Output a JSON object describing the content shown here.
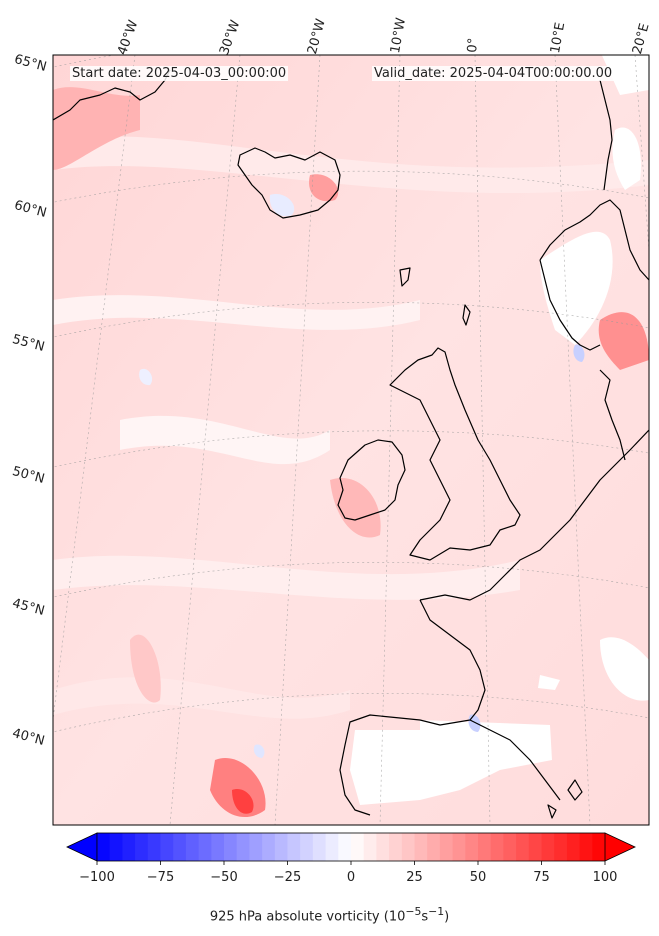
{
  "header": {
    "start_label": "Start date: 2025-04-03_00:00:00",
    "valid_label": "Valid_date: 2025-04-04T00:00:00.00"
  },
  "map": {
    "lon_labels": [
      "40°W",
      "30°W",
      "20°W",
      "10°W",
      "0°",
      "10°E",
      "20°E"
    ],
    "lat_labels": [
      "65°N",
      "60°N",
      "55°N",
      "50°N",
      "45°N",
      "40°N"
    ],
    "field_color_low": "#0000ff",
    "field_color_mid": "#ffffff",
    "field_color_high": "#ff0000"
  },
  "colorbar": {
    "ticks": [
      "−100",
      "−75",
      "−50",
      "−25",
      "0",
      "25",
      "50",
      "75",
      "100"
    ],
    "min": -100,
    "max": 100,
    "title": "925 hPa absolute vorticity (10",
    "title_unit_a": "−5",
    "title_mid": "s",
    "title_unit_b": "−1",
    "title_end": ")"
  }
}
